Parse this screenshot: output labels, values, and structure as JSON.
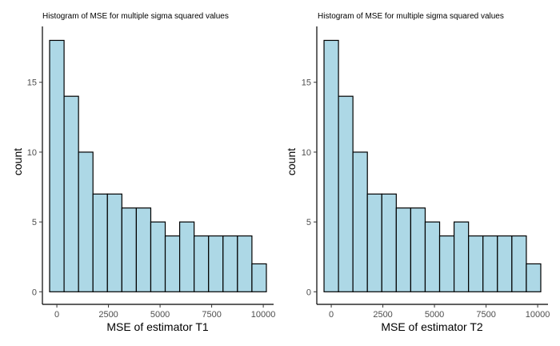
{
  "chart_data": [
    {
      "type": "bar",
      "title": "Histogram of MSE for multiple sigma squared values",
      "xlabel": "MSE of estimator T1",
      "ylabel": "count",
      "bin_centers": [
        0,
        700,
        1400,
        2100,
        2800,
        3500,
        4200,
        4900,
        5600,
        6300,
        7000,
        7700,
        8400,
        9100,
        9800
      ],
      "bin_width": 700,
      "values": [
        18,
        14,
        10,
        7,
        7,
        6,
        6,
        5,
        4,
        5,
        4,
        4,
        4,
        4,
        2
      ],
      "xlim": [
        -700,
        10500
      ],
      "ylim": [
        -0.9,
        19
      ],
      "xticks": [
        0,
        2500,
        5000,
        7500,
        10000
      ],
      "xtick_labels": [
        "0",
        "2500",
        "5000",
        "7500",
        "10000"
      ],
      "yticks": [
        0,
        5,
        10,
        15
      ],
      "ytick_labels": [
        "0",
        "5",
        "10",
        "15"
      ],
      "fill_color": "#add8e6"
    },
    {
      "type": "bar",
      "title": "Histogram of MSE for multiple sigma squared values",
      "xlabel": "MSE of estimator T2",
      "ylabel": "count",
      "bin_centers": [
        0,
        700,
        1400,
        2100,
        2800,
        3500,
        4200,
        4900,
        5600,
        6300,
        7000,
        7700,
        8400,
        9100,
        9800
      ],
      "bin_width": 700,
      "values": [
        18,
        14,
        10,
        7,
        7,
        6,
        6,
        5,
        4,
        5,
        4,
        4,
        4,
        4,
        2
      ],
      "xlim": [
        -700,
        10500
      ],
      "ylim": [
        -0.9,
        19
      ],
      "xticks": [
        0,
        2500,
        5000,
        7500,
        10000
      ],
      "xtick_labels": [
        "0",
        "2500",
        "5000",
        "7500",
        "10000"
      ],
      "yticks": [
        0,
        5,
        10,
        15
      ],
      "ytick_labels": [
        "0",
        "5",
        "10",
        "15"
      ],
      "fill_color": "#add8e6"
    }
  ]
}
